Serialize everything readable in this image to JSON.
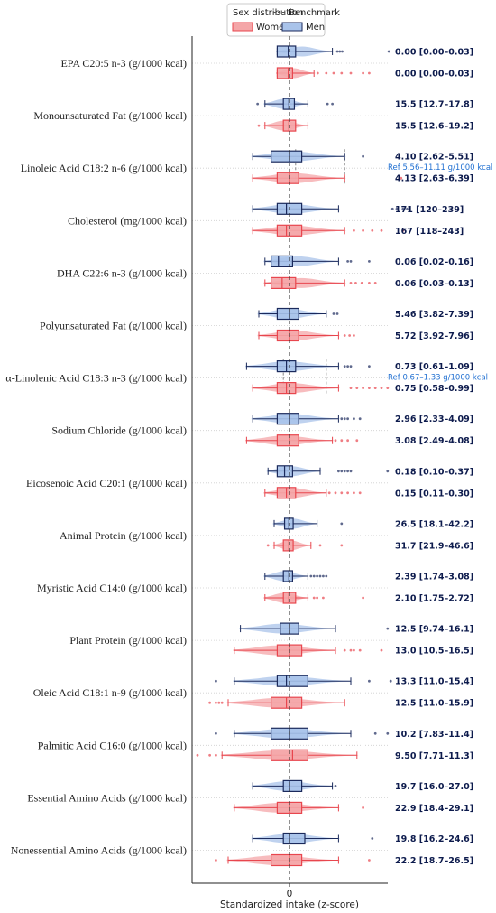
{
  "chart_data": {
    "type": "box",
    "xlabel": "Standardized intake (z-score)",
    "x_ticks": [
      0
    ],
    "legend": {
      "title": "Sex distribution",
      "benchmark_label": "Benchmark",
      "placement": "top-center",
      "entries": [
        {
          "name": "Women",
          "color": "#e8464e",
          "fill": "#f4a6a8"
        },
        {
          "name": "Men",
          "color": "#1b2a5c",
          "fill": "#a9c3ea"
        }
      ]
    },
    "series_order": [
      "Men",
      "Women"
    ],
    "rows": [
      {
        "label": "EPA C20:5 n-3 (g/1000 kcal)",
        "men": {
          "summary": "0.00 [0.00–0.03]",
          "whiskers": [
            -0.2,
            0.7
          ],
          "box": [
            -0.2,
            0.1
          ],
          "median": -0.02,
          "outliers": [
            0.78,
            0.82,
            0.86,
            1.62
          ]
        },
        "women": {
          "summary": "0.00 [0.00–0.03]",
          "whiskers": [
            -0.2,
            0.4
          ],
          "box": [
            -0.2,
            0.05
          ],
          "median": -0.02,
          "outliers": [
            0.46,
            0.6,
            0.72,
            0.85,
            1.0,
            1.2,
            1.3
          ]
        }
      },
      {
        "label": "Monounsaturated Fat (g/1000 kcal)",
        "men": {
          "summary": "15.5 [12.7–17.8]",
          "whiskers": [
            -0.4,
            0.3
          ],
          "box": [
            -0.1,
            0.08
          ],
          "median": -0.01,
          "outliers": [
            -0.52,
            0.62,
            0.7
          ]
        },
        "women": {
          "summary": "15.5 [12.6–19.2]",
          "whiskers": [
            -0.4,
            0.3
          ],
          "box": [
            -0.1,
            0.1
          ],
          "median": -0.01,
          "outliers": [
            -0.5
          ]
        }
      },
      {
        "label": "Linoleic Acid C18:2 n-6 (g/1000 kcal)",
        "ref_label": "Ref 5.56–11.11 g/1000 kcal",
        "benchmark_range": [
          0.1,
          0.9
        ],
        "men": {
          "summary": "4.10 [2.62–5.51]",
          "whiskers": [
            -0.6,
            0.9
          ],
          "box": [
            -0.3,
            0.2
          ],
          "median": 0.0,
          "outliers": [
            1.2
          ]
        },
        "women": {
          "summary": "4.13 [2.63–6.39]",
          "whiskers": [
            -0.6,
            0.9
          ],
          "box": [
            -0.2,
            0.15
          ],
          "median": 0.0,
          "outliers": [
            1.82
          ]
        }
      },
      {
        "label": "Cholesterol (mg/1000 kcal)",
        "men": {
          "summary": "171 [120–239]",
          "whiskers": [
            -0.6,
            0.8
          ],
          "box": [
            -0.2,
            0.2
          ],
          "median": -0.05,
          "outliers": [
            1.68,
            1.75,
            1.85,
            1.92
          ]
        },
        "women": {
          "summary": "167 [118–243]",
          "whiskers": [
            -0.6,
            0.9
          ],
          "box": [
            -0.2,
            0.2
          ],
          "median": -0.05,
          "outliers": [
            1.05,
            1.2,
            1.35,
            1.5,
            1.85
          ]
        }
      },
      {
        "label": "DHA C22:6 n-3 (g/1000 kcal)",
        "men": {
          "summary": "0.06 [0.02–0.16]",
          "whiskers": [
            -0.4,
            0.8
          ],
          "box": [
            -0.3,
            0.05
          ],
          "median": -0.18,
          "outliers": [
            0.95,
            1.0,
            1.3
          ]
        },
        "women": {
          "summary": "0.06 [0.03–0.13]",
          "whiskers": [
            -0.4,
            0.9
          ],
          "box": [
            -0.3,
            0.1
          ],
          "median": -0.12,
          "outliers": [
            1.0,
            1.08,
            1.18,
            1.3,
            1.4
          ]
        }
      },
      {
        "label": "Polyunsaturated Fat (g/1000 kcal)",
        "men": {
          "summary": "5.46 [3.82–7.39]",
          "whiskers": [
            -0.5,
            0.6
          ],
          "box": [
            -0.2,
            0.15
          ],
          "median": 0.0,
          "outliers": [
            0.72,
            0.78
          ]
        },
        "women": {
          "summary": "5.72 [3.92–7.96]",
          "whiskers": [
            -0.5,
            0.8
          ],
          "box": [
            -0.2,
            0.15
          ],
          "median": 0.0,
          "outliers": [
            0.9,
            0.98,
            1.05
          ]
        }
      },
      {
        "label": "α-Linolenic Acid C18:3 n-3 (g/1000 kcal)",
        "ref_label": "Ref 0.67–1.33 g/1000 kcal",
        "benchmark_range": [
          -0.1,
          0.6
        ],
        "men": {
          "summary": "0.73 [0.61–1.09]",
          "whiskers": [
            -0.7,
            0.8
          ],
          "box": [
            -0.2,
            0.1
          ],
          "median": -0.05,
          "outliers": [
            0.9,
            0.95,
            1.0,
            1.3
          ]
        },
        "women": {
          "summary": "0.75 [0.58–0.99]",
          "whiskers": [
            -0.6,
            0.8
          ],
          "box": [
            -0.2,
            0.1
          ],
          "median": -0.05,
          "outliers": [
            1.0,
            1.1,
            1.2,
            1.3,
            1.4,
            1.5,
            1.6
          ]
        }
      },
      {
        "label": "Sodium Chloride (g/1000 kcal)",
        "men": {
          "summary": "2.96 [2.33–4.09]",
          "whiskers": [
            -0.6,
            0.8
          ],
          "box": [
            -0.2,
            0.15
          ],
          "median": 0.0,
          "outliers": [
            0.85,
            0.9,
            0.95,
            1.05,
            1.15
          ]
        },
        "women": {
          "summary": "3.08 [2.49–4.08]",
          "whiskers": [
            -0.7,
            0.7
          ],
          "box": [
            -0.2,
            0.15
          ],
          "median": 0.0,
          "outliers": [
            0.75,
            0.85,
            0.95,
            1.1
          ]
        }
      },
      {
        "label": "Eicosenoic Acid C20:1 (g/1000 kcal)",
        "men": {
          "summary": "0.18 [0.10–0.37]",
          "whiskers": [
            -0.35,
            0.5
          ],
          "box": [
            -0.2,
            0.05
          ],
          "median": -0.08,
          "outliers": [
            0.8,
            0.85,
            0.9,
            0.95,
            1.0,
            1.6
          ]
        },
        "women": {
          "summary": "0.15 [0.11–0.30]",
          "whiskers": [
            -0.4,
            0.6
          ],
          "box": [
            -0.2,
            0.1
          ],
          "median": -0.05,
          "outliers": [
            0.65,
            0.75,
            0.85,
            0.95,
            1.05,
            1.15
          ]
        }
      },
      {
        "label": "Animal Protein (g/1000 kcal)",
        "men": {
          "summary": "26.5 [18.1–42.2]",
          "whiskers": [
            -0.25,
            0.45
          ],
          "box": [
            -0.08,
            0.06
          ],
          "median": -0.01,
          "outliers": [
            0.85
          ]
        },
        "women": {
          "summary": "31.7 [21.9–46.6]",
          "whiskers": [
            -0.25,
            0.35
          ],
          "box": [
            -0.1,
            0.06
          ],
          "median": -0.01,
          "outliers": [
            -0.35,
            0.5,
            0.85
          ]
        }
      },
      {
        "label": "Myristic Acid C14:0 (g/1000 kcal)",
        "men": {
          "summary": "2.39 [1.74–3.08]",
          "whiskers": [
            -0.4,
            0.3
          ],
          "box": [
            -0.1,
            0.05
          ],
          "median": -0.01,
          "outliers": [
            0.35,
            0.4,
            0.45,
            0.5,
            0.55,
            0.6
          ]
        },
        "women": {
          "summary": "2.10 [1.75–2.72]",
          "whiskers": [
            -0.4,
            0.3
          ],
          "box": [
            -0.1,
            0.1
          ],
          "median": -0.01,
          "outliers": [
            0.4,
            0.45,
            0.55,
            1.2
          ]
        }
      },
      {
        "label": "Plant Protein (g/1000 kcal)",
        "men": {
          "summary": "12.5 [9.74–16.1]",
          "whiskers": [
            -0.8,
            0.75
          ],
          "box": [
            -0.15,
            0.15
          ],
          "median": 0.0,
          "outliers": [
            1.6
          ]
        },
        "women": {
          "summary": "13.0 [10.5–16.5]",
          "whiskers": [
            -0.9,
            0.75
          ],
          "box": [
            -0.2,
            0.2
          ],
          "median": 0.0,
          "outliers": [
            0.9,
            1.0,
            1.05,
            1.15,
            1.5
          ]
        }
      },
      {
        "label": "Oleic Acid C18:1 n-9 (g/1000 kcal)",
        "men": {
          "summary": "13.3 [11.0–15.4]",
          "whiskers": [
            -0.9,
            1.0
          ],
          "box": [
            -0.2,
            0.3
          ],
          "median": -0.05,
          "outliers": [
            -1.2,
            1.3,
            1.65
          ]
        },
        "women": {
          "summary": "12.5 [11.0–15.9]",
          "whiskers": [
            -1.0,
            0.9
          ],
          "box": [
            -0.3,
            0.2
          ],
          "median": -0.05,
          "outliers": [
            -1.3,
            -1.2,
            -1.15,
            -1.1
          ]
        }
      },
      {
        "label": "Palmitic Acid C16:0 (g/1000 kcal)",
        "men": {
          "summary": "10.2 [7.83–11.4]",
          "whiskers": [
            -0.9,
            1.0
          ],
          "box": [
            -0.3,
            0.3
          ],
          "median": 0.0,
          "outliers": [
            -1.2,
            1.4,
            1.6
          ]
        },
        "women": {
          "summary": "9.50 [7.71–11.3]",
          "whiskers": [
            -1.1,
            1.1
          ],
          "box": [
            -0.3,
            0.3
          ],
          "median": 0.05,
          "outliers": [
            -1.5,
            -1.3,
            -1.2
          ]
        }
      },
      {
        "label": "Essential Amino Acids (g/1000 kcal)",
        "men": {
          "summary": "19.7 [16.0–27.0]",
          "whiskers": [
            -0.6,
            0.7
          ],
          "box": [
            -0.1,
            0.2
          ],
          "median": 0.0,
          "outliers": [
            0.75
          ]
        },
        "women": {
          "summary": "22.9 [18.4–29.1]",
          "whiskers": [
            -0.9,
            0.8
          ],
          "box": [
            -0.2,
            0.2
          ],
          "median": 0.0,
          "outliers": [
            1.2
          ]
        }
      },
      {
        "label": "Nonessential Amino Acids (g/1000 kcal)",
        "men": {
          "summary": "19.8 [16.2–24.6]",
          "whiskers": [
            -0.6,
            0.8
          ],
          "box": [
            -0.1,
            0.25
          ],
          "median": 0.0,
          "outliers": [
            1.35
          ]
        },
        "women": {
          "summary": "22.2 [18.7–26.5]",
          "whiskers": [
            -1.0,
            0.8
          ],
          "box": [
            -0.3,
            0.2
          ],
          "median": 0.0,
          "outliers": [
            -1.2,
            1.3
          ]
        }
      }
    ]
  }
}
